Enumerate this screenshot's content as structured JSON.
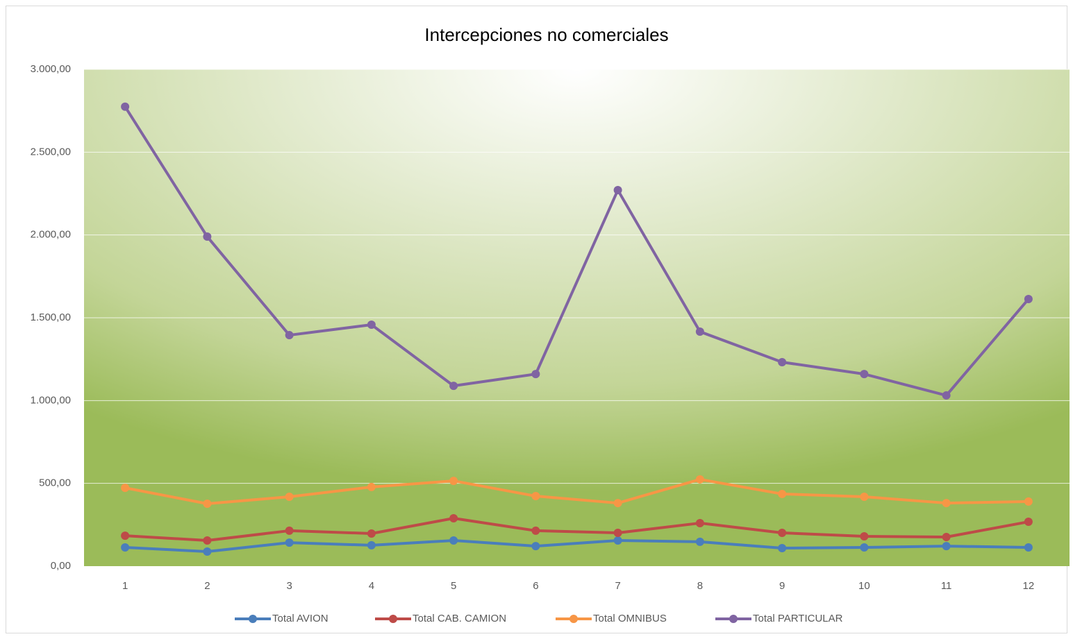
{
  "chart_data": {
    "type": "line",
    "title": "Intercepciones no comerciales",
    "categories": [
      "1",
      "2",
      "3",
      "4",
      "5",
      "6",
      "7",
      "8",
      "9",
      "10",
      "11",
      "12"
    ],
    "series": [
      {
        "name": "Total AVION",
        "color": "#4a7ebb",
        "values": [
          113,
          88,
          142,
          126,
          155,
          121,
          155,
          147,
          109,
          113,
          121,
          113
        ]
      },
      {
        "name": "Total CAB. CAMION",
        "color": "#be4b48",
        "values": [
          184,
          155,
          214,
          197,
          289,
          214,
          201,
          260,
          201,
          180,
          176,
          268
        ]
      },
      {
        "name": "Total OMNIBUS",
        "color": "#f79646",
        "values": [
          473,
          377,
          419,
          478,
          515,
          423,
          381,
          524,
          436,
          419,
          381,
          390
        ]
      },
      {
        "name": "Total PARTICULAR",
        "color": "#8064a2",
        "values": [
          2775,
          1990,
          1395,
          1458,
          1089,
          1160,
          2271,
          1416,
          1232,
          1160,
          1031,
          1613
        ]
      }
    ],
    "ylim": [
      0,
      3000
    ],
    "yticks": [
      {
        "value": 0,
        "label": "0,00"
      },
      {
        "value": 500,
        "label": "500,00"
      },
      {
        "value": 1000,
        "label": "1.000,00"
      },
      {
        "value": 1500,
        "label": "1.500,00"
      },
      {
        "value": 2000,
        "label": "2.000,00"
      },
      {
        "value": 2500,
        "label": "2.500,00"
      },
      {
        "value": 3000,
        "label": "3.000,00"
      }
    ],
    "grid": true,
    "legend": "bottom"
  }
}
